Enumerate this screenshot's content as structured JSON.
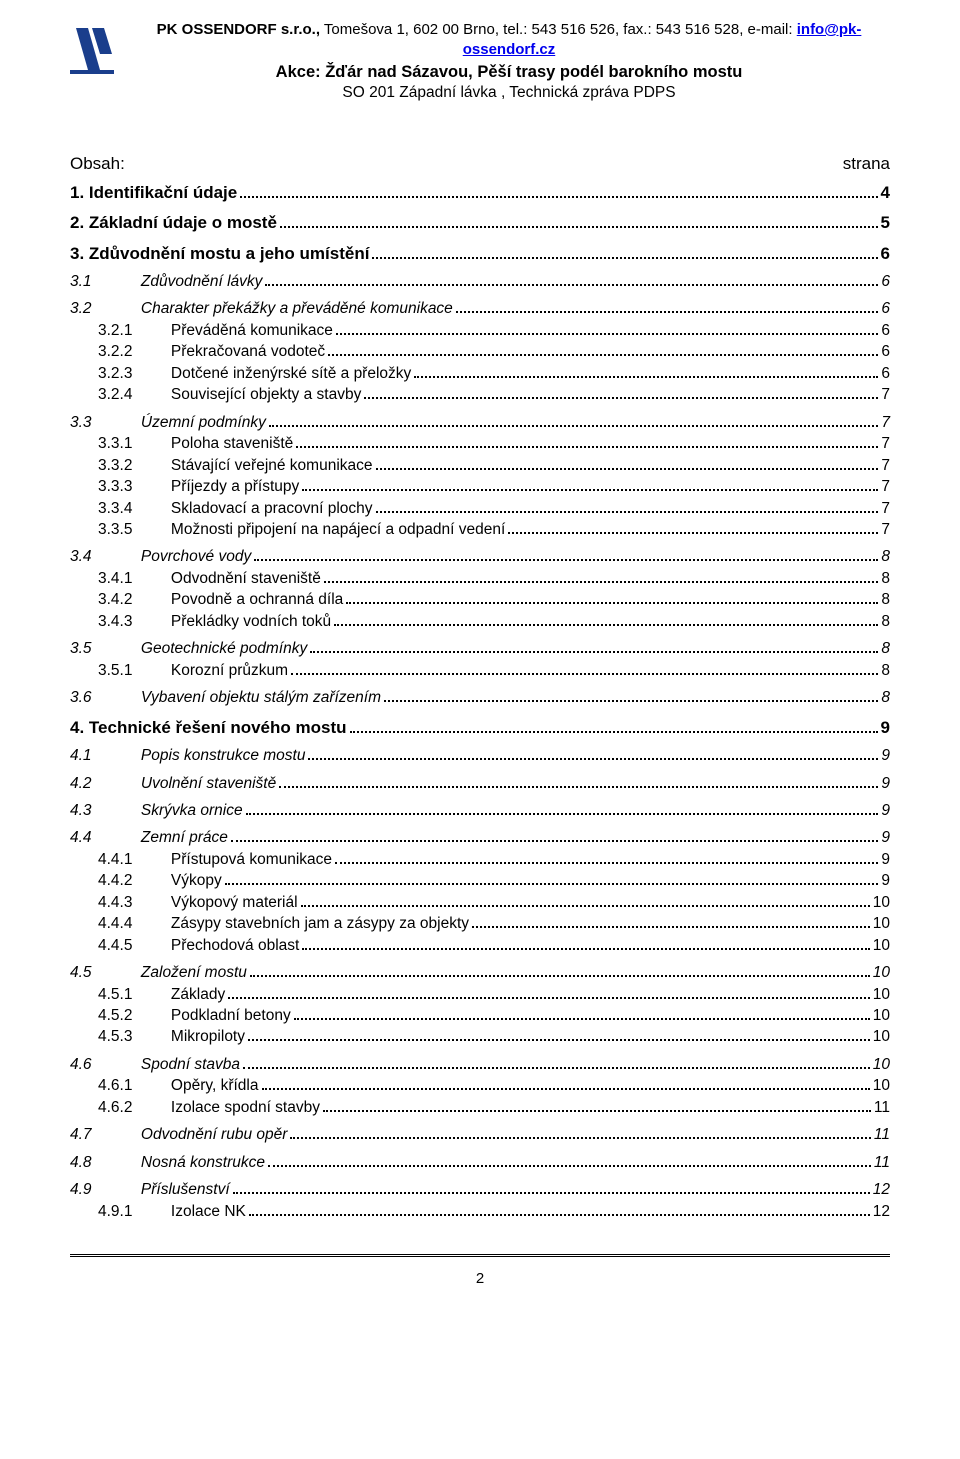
{
  "header": {
    "company": "PK OSSENDORF s.r.o.,",
    "address": " Tomešova 1, 602 00 Brno, tel.: 543 516 526, fax.: 543 516 528, e-mail: ",
    "email": "info@pk-ossendorf.cz",
    "line2": "Akce: Žďár nad Sázavou, Pěší trasy podél barokního mostu",
    "line3": "SO 201 Západní lávka ,  Technická zpráva PDPS"
  },
  "titles": {
    "obsah": "Obsah:",
    "strana": "strana"
  },
  "toc": [
    {
      "lvl": 1,
      "num": "1.",
      "title": "Identifikační údaje",
      "page": "4"
    },
    {
      "lvl": 1,
      "num": "2.",
      "title": "Základní údaje o mostě",
      "page": "5"
    },
    {
      "lvl": 1,
      "num": "3.",
      "title": "Zdůvodnění mostu a jeho umístění",
      "page": "6"
    },
    {
      "lvl": 2,
      "num": "3.1",
      "title": "Zdůvodnění lávky",
      "page": "6"
    },
    {
      "lvl": 2,
      "num": "3.2",
      "title": "Charakter překážky a převáděné komunikace",
      "page": "6"
    },
    {
      "lvl": 3,
      "num": "3.2.1",
      "title": "Převáděná komunikace",
      "page": "6"
    },
    {
      "lvl": 3,
      "num": "3.2.2",
      "title": "Překračovaná vodoteč",
      "page": "6"
    },
    {
      "lvl": 3,
      "num": "3.2.3",
      "title": "Dotčené inženýrské sítě a přeložky",
      "page": "6"
    },
    {
      "lvl": 3,
      "num": "3.2.4",
      "title": "Související objekty a stavby",
      "page": "7"
    },
    {
      "lvl": 2,
      "num": "3.3",
      "title": "Územní podmínky",
      "page": "7"
    },
    {
      "lvl": 3,
      "num": "3.3.1",
      "title": "Poloha staveniště",
      "page": "7"
    },
    {
      "lvl": 3,
      "num": "3.3.2",
      "title": "Stávající veřejné komunikace",
      "page": "7"
    },
    {
      "lvl": 3,
      "num": "3.3.3",
      "title": "Příjezdy a přístupy",
      "page": "7"
    },
    {
      "lvl": 3,
      "num": "3.3.4",
      "title": "Skladovací a pracovní plochy",
      "page": "7"
    },
    {
      "lvl": 3,
      "num": "3.3.5",
      "title": "Možnosti připojení na napájecí a odpadní vedení",
      "page": "7"
    },
    {
      "lvl": 2,
      "num": "3.4",
      "title": "Povrchové vody",
      "page": "8"
    },
    {
      "lvl": 3,
      "num": "3.4.1",
      "title": "Odvodnění staveniště",
      "page": "8"
    },
    {
      "lvl": 3,
      "num": "3.4.2",
      "title": "Povodně a ochranná díla",
      "page": "8"
    },
    {
      "lvl": 3,
      "num": "3.4.3",
      "title": "Překládky vodních toků",
      "page": "8"
    },
    {
      "lvl": 2,
      "num": "3.5",
      "title": "Geotechnické podmínky",
      "page": "8"
    },
    {
      "lvl": 3,
      "num": "3.5.1",
      "title": "Korozní průzkum",
      "page": "8"
    },
    {
      "lvl": 2,
      "num": "3.6",
      "title": "Vybavení objektu stálým zařízením",
      "page": "8"
    },
    {
      "lvl": 1,
      "num": "4.",
      "title": "Technické řešení nového mostu",
      "page": "9"
    },
    {
      "lvl": 2,
      "num": "4.1",
      "title": "Popis konstrukce mostu",
      "page": "9"
    },
    {
      "lvl": 2,
      "num": "4.2",
      "title": "Uvolnění staveniště",
      "page": "9"
    },
    {
      "lvl": 2,
      "num": "4.3",
      "title": "Skrývka ornice",
      "page": "9"
    },
    {
      "lvl": 2,
      "num": "4.4",
      "title": "Zemní práce",
      "page": "9"
    },
    {
      "lvl": 3,
      "num": "4.4.1",
      "title": "Přístupová komunikace",
      "page": "9"
    },
    {
      "lvl": 3,
      "num": "4.4.2",
      "title": "Výkopy",
      "page": "9"
    },
    {
      "lvl": 3,
      "num": "4.4.3",
      "title": "Výkopový materiál",
      "page": "10"
    },
    {
      "lvl": 3,
      "num": "4.4.4",
      "title": "Zásypy stavebních jam a zásypy za objekty",
      "page": "10"
    },
    {
      "lvl": 3,
      "num": "4.4.5",
      "title": "Přechodová oblast",
      "page": "10"
    },
    {
      "lvl": 2,
      "num": "4.5",
      "title": "Založení mostu",
      "page": "10"
    },
    {
      "lvl": 3,
      "num": "4.5.1",
      "title": "Základy",
      "page": "10"
    },
    {
      "lvl": 3,
      "num": "4.5.2",
      "title": "Podkladní betony",
      "page": "10"
    },
    {
      "lvl": 3,
      "num": "4.5.3",
      "title": "Mikropiloty",
      "page": "10"
    },
    {
      "lvl": 2,
      "num": "4.6",
      "title": "Spodní stavba",
      "page": "10"
    },
    {
      "lvl": 3,
      "num": "4.6.1",
      "title": "Opěry, křídla",
      "page": "10"
    },
    {
      "lvl": 3,
      "num": "4.6.2",
      "title": "Izolace spodní stavby",
      "page": "11"
    },
    {
      "lvl": 2,
      "num": "4.7",
      "title": "Odvodnění rubu opěr",
      "page": "11"
    },
    {
      "lvl": 2,
      "num": "4.8",
      "title": "Nosná konstrukce",
      "page": "11"
    },
    {
      "lvl": 2,
      "num": "4.9",
      "title": "Příslušenství",
      "page": "12"
    },
    {
      "lvl": 3,
      "num": "4.9.1",
      "title": "Izolace NK",
      "page": "12"
    }
  ],
  "pageNumber": "2",
  "logo_color": "#1a3e8c"
}
